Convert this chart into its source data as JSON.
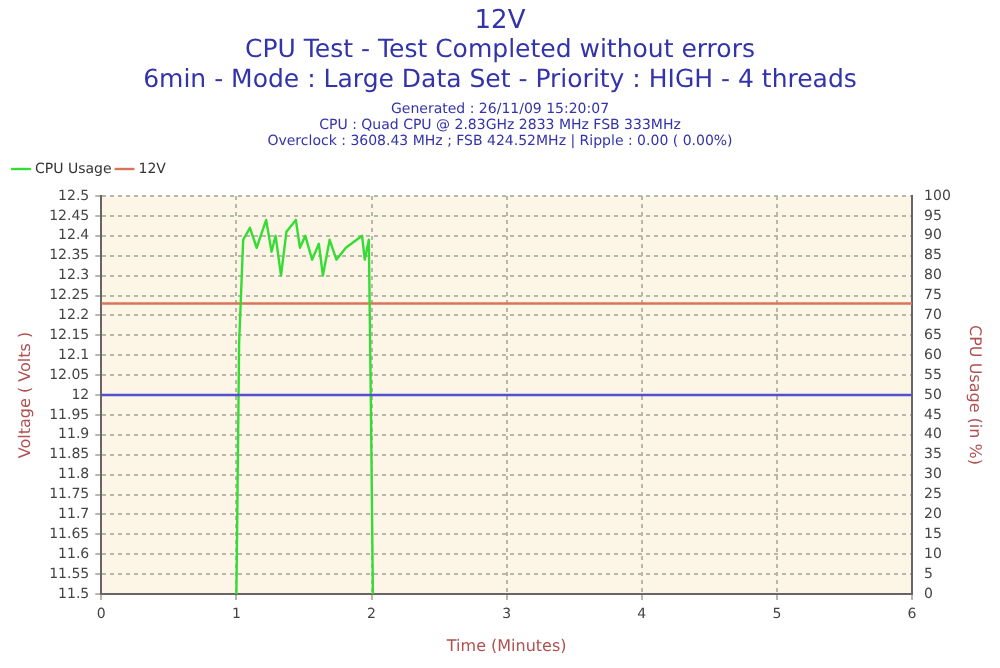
{
  "chart_data": {
    "type": "line",
    "title": "12V",
    "subtitle": "CPU Test - Test Completed without errors\n6min - Mode : Large Data Set - Priority : HIGH - 4 threads",
    "annotations": [
      "Generated : 26/11/09 15:20:07",
      "CPU : Quad CPU @ 2.83GHz 2833 MHz FSB 333MHz",
      "Overclock : 3608.43 MHz ; FSB 424.52MHz | Ripple : 0.00 ( 0.00%)"
    ],
    "xlabel": "Time (Minutes)",
    "ylabel": "Voltage ( Volts )",
    "y2label": "CPU Usage (in %)",
    "series": [
      {
        "name": "CPU Usage",
        "color": "#33dd33",
        "axis": "y2",
        "x": [
          1.0,
          1.02,
          1.05,
          1.1,
          1.15,
          1.22,
          1.26,
          1.29,
          1.33,
          1.37,
          1.44,
          1.47,
          1.51,
          1.56,
          1.61,
          1.64,
          1.69,
          1.74,
          1.81,
          1.93,
          1.95,
          1.98,
          1.995,
          2.01
        ],
        "values": [
          0,
          63,
          89,
          92,
          87,
          94,
          86,
          90,
          80,
          91,
          94,
          87,
          90,
          84,
          88,
          80,
          89,
          84,
          87,
          90,
          84,
          89,
          48,
          0
        ]
      },
      {
        "name": "12V",
        "color": "#d9735a",
        "x": [
          0,
          6
        ],
        "values": [
          12.23,
          12.23
        ]
      }
    ],
    "ref_lines": [
      {
        "axis": "y",
        "value": 12,
        "color": "#5050d0"
      }
    ],
    "xlim": [
      0,
      6
    ],
    "xticks": [
      0,
      1,
      2,
      3,
      4,
      5,
      6
    ],
    "ylim": [
      11.5,
      12.5
    ],
    "yticks": [
      11.5,
      11.55,
      11.6,
      11.65,
      11.7,
      11.75,
      11.8,
      11.85,
      11.9,
      11.95,
      12,
      12.05,
      12.1,
      12.15,
      12.2,
      12.25,
      12.3,
      12.35,
      12.4,
      12.45,
      12.5
    ],
    "y2lim": [
      0,
      100
    ],
    "y2ticks": [
      0,
      5,
      10,
      15,
      20,
      25,
      30,
      35,
      40,
      45,
      50,
      55,
      60,
      65,
      70,
      75,
      80,
      85,
      90,
      95,
      100
    ],
    "grid": true,
    "legend": "top left",
    "marker": "none",
    "line_style": "solid"
  }
}
